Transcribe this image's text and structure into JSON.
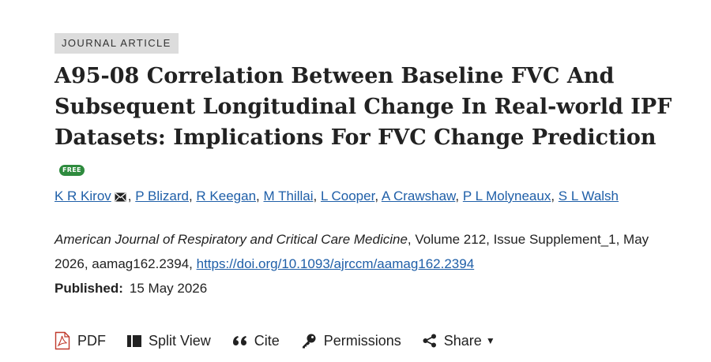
{
  "article_type": "JOURNAL ARTICLE",
  "title": "A95-08 Correlation Between Baseline FVC And Subsequent Longitudinal Change In Real-world IPF Datasets: Implications For FVC Change Prediction",
  "free_badge": "FREE",
  "authors": [
    {
      "name": "K R Kirov",
      "corresponding": true
    },
    {
      "name": "P Blizard"
    },
    {
      "name": "R Keegan"
    },
    {
      "name": "M Thillai"
    },
    {
      "name": "L Cooper"
    },
    {
      "name": "A Crawshaw"
    },
    {
      "name": "P L Molyneaux"
    },
    {
      "name": "S L Walsh"
    }
  ],
  "citation": {
    "journal": "American Journal of Respiratory and Critical Care Medicine",
    "details": ", Volume 212, Issue Supplement_1, May 2026, aamag162.2394, ",
    "doi": "https://doi.org/10.1093/ajrccm/aamag162.2394"
  },
  "published": {
    "label": "Published:",
    "date": "15 May 2026"
  },
  "toolbar": {
    "pdf": "PDF",
    "split_view": "Split View",
    "cite": "Cite",
    "permissions": "Permissions",
    "share": "Share"
  },
  "colors": {
    "link": "#1f5fa8",
    "free_badge": "#2e8b3e",
    "pdf_icon": "#c0392b"
  }
}
